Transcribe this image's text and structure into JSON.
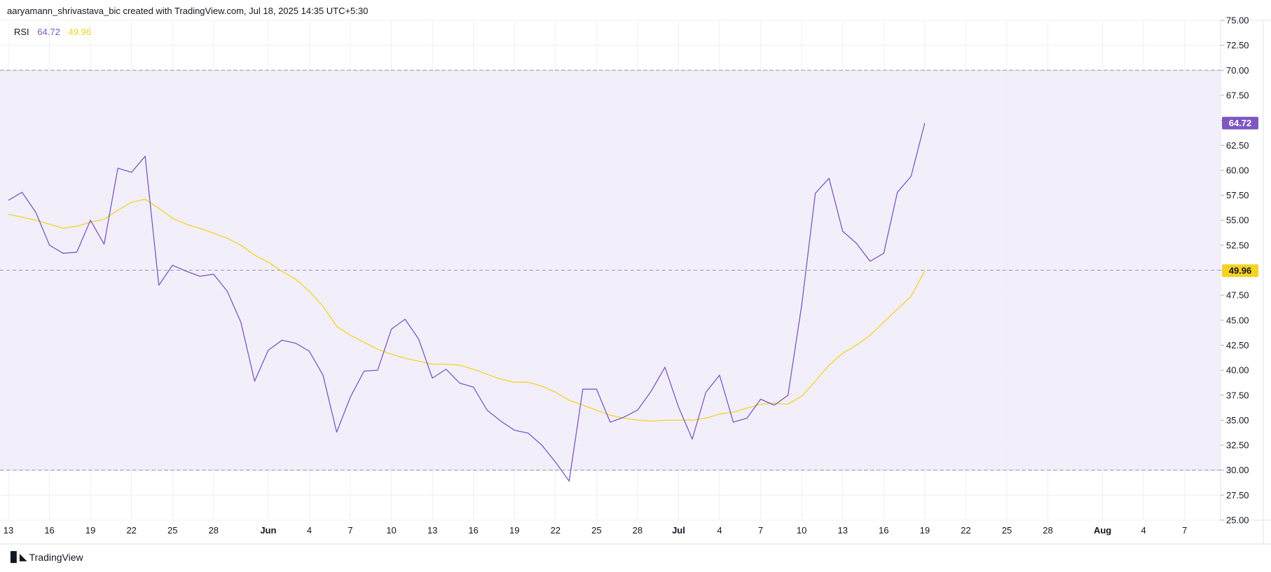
{
  "header": {
    "credit": "aaryamann_shrivastava_bic created with TradingView.com, Jul 18, 2025 14:35 UTC+5:30"
  },
  "legend": {
    "name": "RSI",
    "rsi_value": "64.72",
    "ma_value": "49.96"
  },
  "footer": {
    "brand": "TradingView"
  },
  "colors": {
    "rsi": "#7e57c2",
    "ma": "#f5d224",
    "band_fill": "#f0ecfa",
    "grid": "#eef0f4",
    "dashed": "#9598a1"
  },
  "chart_data": {
    "type": "line",
    "ylim": [
      25,
      75
    ],
    "y_ticks": [
      "25.00",
      "27.50",
      "30.00",
      "32.50",
      "35.00",
      "37.50",
      "40.00",
      "42.50",
      "45.00",
      "47.50",
      "50.00",
      "52.50",
      "55.00",
      "57.50",
      "60.00",
      "62.50",
      "65.00",
      "67.50",
      "70.00",
      "72.50",
      "75.00"
    ],
    "x_tick_labels": [
      {
        "day": 0,
        "label": "13"
      },
      {
        "day": 3,
        "label": "16"
      },
      {
        "day": 6,
        "label": "19"
      },
      {
        "day": 9,
        "label": "22"
      },
      {
        "day": 12,
        "label": "25"
      },
      {
        "day": 15,
        "label": "28"
      },
      {
        "day": 19,
        "label": "Jun"
      },
      {
        "day": 22,
        "label": "4"
      },
      {
        "day": 25,
        "label": "7"
      },
      {
        "day": 28,
        "label": "10"
      },
      {
        "day": 31,
        "label": "13"
      },
      {
        "day": 34,
        "label": "16"
      },
      {
        "day": 37,
        "label": "19"
      },
      {
        "day": 40,
        "label": "22"
      },
      {
        "day": 43,
        "label": "25"
      },
      {
        "day": 46,
        "label": "28"
      },
      {
        "day": 49,
        "label": "Jul"
      },
      {
        "day": 52,
        "label": "4"
      },
      {
        "day": 55,
        "label": "7"
      },
      {
        "day": 58,
        "label": "10"
      },
      {
        "day": 61,
        "label": "13"
      },
      {
        "day": 64,
        "label": "16"
      },
      {
        "day": 67,
        "label": "19"
      },
      {
        "day": 70,
        "label": "22"
      },
      {
        "day": 73,
        "label": "25"
      },
      {
        "day": 76,
        "label": "28"
      },
      {
        "day": 80,
        "label": "Aug"
      },
      {
        "day": 83,
        "label": "4"
      },
      {
        "day": 86,
        "label": "7"
      }
    ],
    "bands": {
      "upper": 70,
      "middle": 50,
      "lower": 30
    },
    "series": [
      {
        "name": "RSI",
        "values": [
          57.0,
          57.8,
          55.8,
          52.5,
          51.7,
          51.8,
          55.0,
          52.6,
          60.2,
          59.8,
          61.4,
          48.5,
          50.5,
          49.9,
          49.4,
          49.6,
          47.9,
          44.8,
          38.9,
          42.0,
          43.0,
          42.7,
          41.9,
          39.5,
          33.8,
          37.3,
          39.9,
          40.0,
          44.1,
          45.1,
          43.1,
          39.2,
          40.1,
          38.7,
          38.3,
          36.0,
          34.9,
          34.0,
          33.7,
          32.5,
          30.8,
          28.9,
          38.1,
          38.1,
          34.8,
          35.3,
          36.0,
          37.9,
          40.3,
          36.3,
          33.1,
          37.8,
          39.5,
          34.8,
          35.2,
          37.1,
          36.5,
          37.5,
          46.5,
          57.7,
          59.2,
          53.9,
          52.7,
          50.9,
          51.7,
          57.8,
          59.4,
          64.72
        ]
      },
      {
        "name": "RSI-based MA",
        "values": [
          55.6,
          55.3,
          55.0,
          54.6,
          54.2,
          54.4,
          54.8,
          55.1,
          56.0,
          56.8,
          57.1,
          56.2,
          55.2,
          54.6,
          54.2,
          53.7,
          53.2,
          52.5,
          51.5,
          50.8,
          49.9,
          49.1,
          47.9,
          46.4,
          44.4,
          43.5,
          42.8,
          42.1,
          41.6,
          41.2,
          40.9,
          40.6,
          40.6,
          40.5,
          40.1,
          39.6,
          39.1,
          38.8,
          38.8,
          38.4,
          37.8,
          37.0,
          36.5,
          36.0,
          35.5,
          35.2,
          35.0,
          34.9,
          35.0,
          35.0,
          35.0,
          35.2,
          35.6,
          35.8,
          36.2,
          36.6,
          36.7,
          36.6,
          37.4,
          38.9,
          40.5,
          41.7,
          42.5,
          43.5,
          44.8,
          46.1,
          47.4,
          49.96
        ]
      }
    ]
  }
}
